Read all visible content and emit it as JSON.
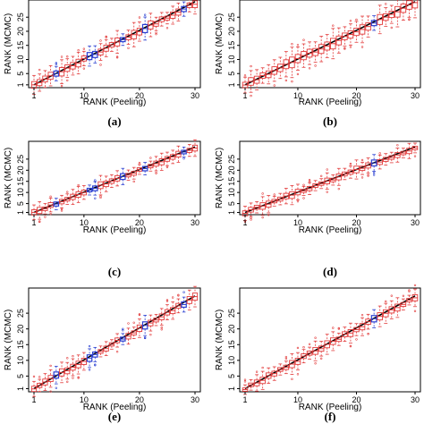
{
  "chart_data": [
    {
      "type": "box",
      "panel_label": "(a)",
      "xlabel": "RANK (Peeling)",
      "ylabel": "RANK (MCMC)",
      "x_ticks": [
        1,
        10,
        20,
        30
      ],
      "y_ticks": [
        1,
        5,
        10,
        15,
        20,
        25
      ],
      "xlim": [
        1,
        30
      ],
      "ylim": [
        0,
        33
      ],
      "highlight_color": "#2a3fd1",
      "base_color": "#e23b3b",
      "blue_boxes": [
        5,
        11,
        12,
        17,
        21,
        28
      ],
      "spread": 4,
      "reference_line": true
    },
    {
      "type": "box",
      "panel_label": "(b)",
      "xlabel": "RANK (Peeling)",
      "ylabel": "RANK (MCMC)",
      "x_ticks": [
        1,
        10,
        20,
        30
      ],
      "y_ticks": [
        1,
        5,
        10,
        15,
        20,
        25
      ],
      "xlim": [
        1,
        30
      ],
      "ylim": [
        0,
        33
      ],
      "highlight_color": "#2a3fd1",
      "base_color": "#e23b3b",
      "blue_boxes": [
        23
      ],
      "spread": 5,
      "reference_line": true
    },
    {
      "type": "box",
      "panel_label": "(c)",
      "xlabel": "RANK (Peeling)",
      "ylabel": "RANK (MCMC)",
      "x_ticks": [
        1,
        10,
        20,
        30
      ],
      "y_ticks": [
        1,
        5,
        10,
        15,
        20,
        25
      ],
      "xlim": [
        1,
        30
      ],
      "ylim": [
        0,
        33
      ],
      "highlight_color": "#2a3fd1",
      "base_color": "#e23b3b",
      "blue_boxes": [
        5,
        11,
        12,
        17,
        21,
        28
      ],
      "spread": 4,
      "reference_line": true
    },
    {
      "type": "box",
      "panel_label": "(d)",
      "xlabel": "RANK (Peeling)",
      "ylabel": "RANK (MCMC)",
      "x_ticks": [
        1,
        10,
        20,
        30
      ],
      "y_ticks": [
        1,
        5,
        10,
        15,
        20,
        25
      ],
      "xlim": [
        1,
        30
      ],
      "ylim": [
        0,
        33
      ],
      "highlight_color": "#2a3fd1",
      "base_color": "#e23b3b",
      "blue_boxes": [
        23
      ],
      "spread": 4,
      "reference_line": true
    },
    {
      "type": "box",
      "panel_label": "(e)",
      "xlabel": "RANK (Peeling)",
      "ylabel": "RANK (MCMC)",
      "x_ticks": [
        1,
        10,
        20,
        30
      ],
      "y_ticks": [
        1,
        5,
        10,
        15,
        20,
        25
      ],
      "xlim": [
        1,
        30
      ],
      "ylim": [
        0,
        33
      ],
      "highlight_color": "#2a3fd1",
      "base_color": "#e23b3b",
      "blue_boxes": [
        5,
        11,
        12,
        17,
        21,
        28
      ],
      "spread": 3,
      "reference_line": true
    },
    {
      "type": "box",
      "panel_label": "(f)",
      "xlabel": "RANK (Peeling)",
      "ylabel": "RANK (MCMC)",
      "x_ticks": [
        1,
        10,
        20,
        30
      ],
      "y_ticks": [
        1,
        5,
        10,
        15,
        20,
        25
      ],
      "xlim": [
        1,
        30
      ],
      "ylim": [
        0,
        33
      ],
      "highlight_color": "#2a3fd1",
      "base_color": "#e23b3b",
      "blue_boxes": [
        23
      ],
      "spread": 3,
      "reference_line": true
    }
  ]
}
